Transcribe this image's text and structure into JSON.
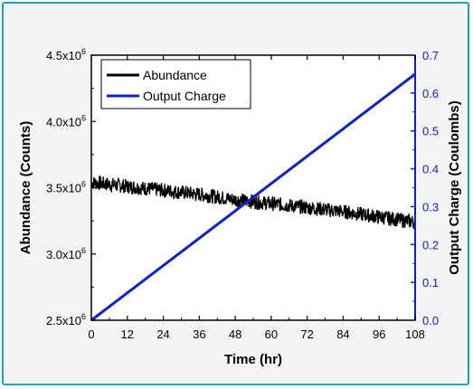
{
  "chart_data": {
    "type": "line",
    "xlabel": "Time (hr)",
    "ylabel_left": "Abundance (Counts)",
    "ylabel_right": "Output Charge (Coulombs)",
    "x_ticks": [
      0,
      12,
      24,
      36,
      48,
      60,
      72,
      84,
      96,
      108
    ],
    "xlim": [
      0,
      108
    ],
    "ylim_left": [
      2500000,
      4500000
    ],
    "ylim_right": [
      0,
      0.7
    ],
    "y_left_tick_labels": [
      {
        "value": 4500000,
        "mantissa": "4.5x10",
        "exp": "6"
      },
      {
        "value": 4000000,
        "mantissa": "4.0x10",
        "exp": "6"
      },
      {
        "value": 3500000,
        "mantissa": "3.5x10",
        "exp": "6"
      },
      {
        "value": 3000000,
        "mantissa": "3.0x10",
        "exp": "6"
      },
      {
        "value": 2500000,
        "mantissa": "2.5x10",
        "exp": "6"
      }
    ],
    "y_right_ticks": [
      "0.0",
      "0.1",
      "0.2",
      "0.3",
      "0.4",
      "0.5",
      "0.6",
      "0.7"
    ],
    "legend_position": "top-left",
    "series": [
      {
        "name": "Abundance",
        "axis": "left",
        "color": "#000000",
        "x": [
          0,
          12,
          24,
          36,
          48,
          60,
          72,
          84,
          96,
          108
        ],
        "y": [
          3540000,
          3510000,
          3480000,
          3450000,
          3410000,
          3380000,
          3350000,
          3320000,
          3280000,
          3240000
        ],
        "noise_band": 55000
      },
      {
        "name": "Output Charge",
        "axis": "right",
        "color": "#0b22c8",
        "x": [
          0,
          108
        ],
        "y": [
          0.0,
          0.65
        ]
      }
    ]
  }
}
